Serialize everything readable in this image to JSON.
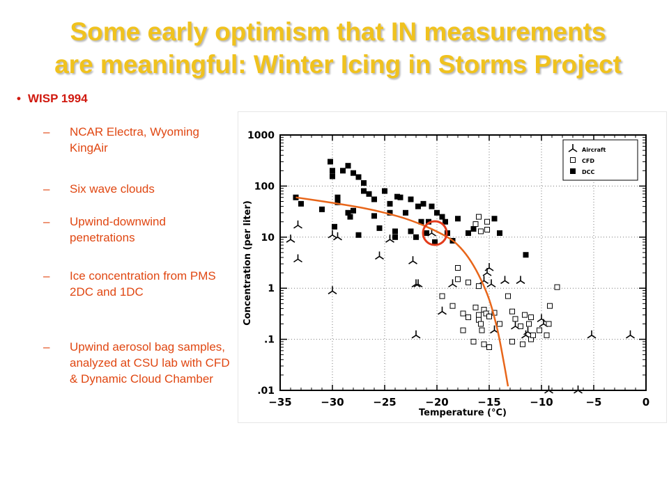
{
  "title": {
    "line1": "Some early optimism that IN measurements",
    "line2": "are meaningful: Winter Icing in Storms Project"
  },
  "bullet": {
    "label": "WISP 1994",
    "dash": "–",
    "items": [
      "NCAR Electra, Wyoming KingAir",
      " Six wave clouds",
      "Upwind-downwind penetrations",
      "Ice concentration from PMS 2DC and 1DC",
      " Upwind aerosol bag samples, analyzed at CSU lab with CFD & Dynamic Cloud Chamber"
    ]
  },
  "colors": {
    "title": "#f0c21e",
    "bullet": "#d0190f",
    "subtext": "#e04712",
    "fit_curve": "#e8661a",
    "highlight_circle": "#e33b1b"
  },
  "chart_data": {
    "type": "scatter",
    "xlabel": "Temperature (°C)",
    "ylabel": "Concentration (per liter)",
    "xlim": [
      -35,
      0
    ],
    "ylim": [
      0.01,
      1000
    ],
    "y_scale": "log",
    "x_ticks": [
      "−35",
      "−30",
      "−25",
      "−20",
      "−15",
      "−10",
      "−5",
      "0"
    ],
    "y_ticks": [
      "1000",
      "100",
      "10",
      "1",
      ".1",
      ".01"
    ],
    "grid": "dotted",
    "legend_position": "top-right",
    "series": [
      {
        "name": "Aircraft",
        "marker": "tri",
        "points": [
          [
            -33.3,
            17
          ],
          [
            -34,
            9
          ],
          [
            -33.3,
            3.7
          ],
          [
            -30,
            0.88
          ],
          [
            -30,
            11
          ],
          [
            -29.5,
            10
          ],
          [
            -25.5,
            4.2
          ],
          [
            -24.5,
            9
          ],
          [
            -22.3,
            3.4
          ],
          [
            -22,
            1.2
          ],
          [
            -21.8,
            1.2
          ],
          [
            -22,
            0.12
          ],
          [
            -20.5,
            12
          ],
          [
            -19.5,
            0.35
          ],
          [
            -18.5,
            1.2
          ],
          [
            -15.5,
            1.4
          ],
          [
            -15.2,
            2
          ],
          [
            -15,
            2.5
          ],
          [
            -14.8,
            1.2
          ],
          [
            -14.5,
            0.15
          ],
          [
            -13.5,
            1.4
          ],
          [
            -12,
            1.4
          ],
          [
            -12.5,
            0.18
          ],
          [
            -11.5,
            0.12
          ],
          [
            -11.3,
            0.14
          ],
          [
            -10,
            0.25
          ],
          [
            -9.8,
            0.2
          ],
          [
            -5.2,
            0.12
          ],
          [
            -9.3,
            0.01
          ],
          [
            -6.5,
            0.01
          ],
          [
            -1.5,
            0.12
          ]
        ]
      },
      {
        "name": "CFD",
        "marker": "square",
        "points": [
          [
            -19.5,
            0.7
          ],
          [
            -18.5,
            0.45
          ],
          [
            -18,
            1.5
          ],
          [
            -18,
            2.5
          ],
          [
            -17,
            1.3
          ],
          [
            -16,
            1.1
          ],
          [
            -17.5,
            0.32
          ],
          [
            -17,
            0.27
          ],
          [
            -16.3,
            0.42
          ],
          [
            -16,
            0.3
          ],
          [
            -16,
            0.24
          ],
          [
            -15.8,
            0.2
          ],
          [
            -15.7,
            0.15
          ],
          [
            -15.5,
            0.38
          ],
          [
            -15.3,
            0.32
          ],
          [
            -15,
            0.28
          ],
          [
            -14.5,
            0.33
          ],
          [
            -14,
            0.2
          ],
          [
            -13.2,
            0.7
          ],
          [
            -12.8,
            0.35
          ],
          [
            -12.5,
            0.25
          ],
          [
            -12,
            0.18
          ],
          [
            -11.6,
            0.3
          ],
          [
            -11,
            0.27
          ],
          [
            -11.2,
            0.2
          ],
          [
            -10.2,
            0.15
          ],
          [
            -9.2,
            0.45
          ],
          [
            -9.3,
            0.2
          ],
          [
            -9.5,
            0.12
          ],
          [
            -8.5,
            1.05
          ],
          [
            -16.5,
            0.09
          ],
          [
            -15.5,
            0.08
          ],
          [
            -15,
            0.07
          ],
          [
            -12.8,
            0.09
          ],
          [
            -11,
            0.1
          ],
          [
            -11.8,
            0.08
          ],
          [
            -10.8,
            0.12
          ],
          [
            -16,
            25
          ],
          [
            -15.2,
            20
          ],
          [
            -15.8,
            13
          ],
          [
            -16.3,
            18
          ],
          [
            -15.2,
            14
          ],
          [
            -17.5,
            0.15
          ]
        ]
      },
      {
        "name": "DCC",
        "marker": "filled-square",
        "points": [
          [
            -33.5,
            60
          ],
          [
            -33,
            45
          ],
          [
            -31,
            35
          ],
          [
            -30.2,
            300
          ],
          [
            -30,
            200
          ],
          [
            -30,
            155
          ],
          [
            -29.5,
            60
          ],
          [
            -29.5,
            48
          ],
          [
            -29.8,
            16
          ],
          [
            -29,
            200
          ],
          [
            -28,
            180
          ],
          [
            -27.5,
            150
          ],
          [
            -27,
            115
          ],
          [
            -27,
            80
          ],
          [
            -26.5,
            70
          ],
          [
            -28.5,
            250
          ],
          [
            -28.5,
            30
          ],
          [
            -28.3,
            25
          ],
          [
            -28,
            33
          ],
          [
            -27.5,
            11
          ],
          [
            -26,
            55
          ],
          [
            -26,
            26
          ],
          [
            -25.5,
            15
          ],
          [
            -25,
            80
          ],
          [
            -24.5,
            45
          ],
          [
            -24.5,
            30
          ],
          [
            -24,
            13
          ],
          [
            -24,
            10
          ],
          [
            -23.8,
            62
          ],
          [
            -23.5,
            60
          ],
          [
            -23,
            30
          ],
          [
            -22.5,
            55
          ],
          [
            -22.5,
            13
          ],
          [
            -21.8,
            40
          ],
          [
            -21.5,
            20
          ],
          [
            -21.3,
            45
          ],
          [
            -21,
            12
          ],
          [
            -20.8,
            20
          ],
          [
            -20.5,
            40
          ],
          [
            -20.2,
            8
          ],
          [
            -20,
            30
          ],
          [
            -19.5,
            25
          ],
          [
            -19.2,
            20
          ],
          [
            -19,
            12
          ],
          [
            -18.5,
            8.5
          ],
          [
            -18,
            23
          ],
          [
            -17,
            12
          ],
          [
            -16.5,
            14.5
          ],
          [
            -14.5,
            23
          ],
          [
            -14,
            12
          ],
          [
            -11.5,
            4.5
          ],
          [
            -22,
            10
          ]
        ]
      }
    ],
    "fit_curve": [
      [
        -33.5,
        60
      ],
      [
        -30,
        47
      ],
      [
        -27,
        37
      ],
      [
        -25,
        30
      ],
      [
        -23,
        23
      ],
      [
        -21,
        16
      ],
      [
        -19,
        10
      ],
      [
        -18,
        7
      ],
      [
        -17,
        4
      ],
      [
        -16,
        1.8
      ],
      [
        -15,
        0.6
      ],
      [
        -14.2,
        0.15
      ],
      [
        -13.6,
        0.035
      ],
      [
        -13.2,
        0.012
      ]
    ],
    "highlight": {
      "x": -20.2,
      "y": 12
    }
  }
}
